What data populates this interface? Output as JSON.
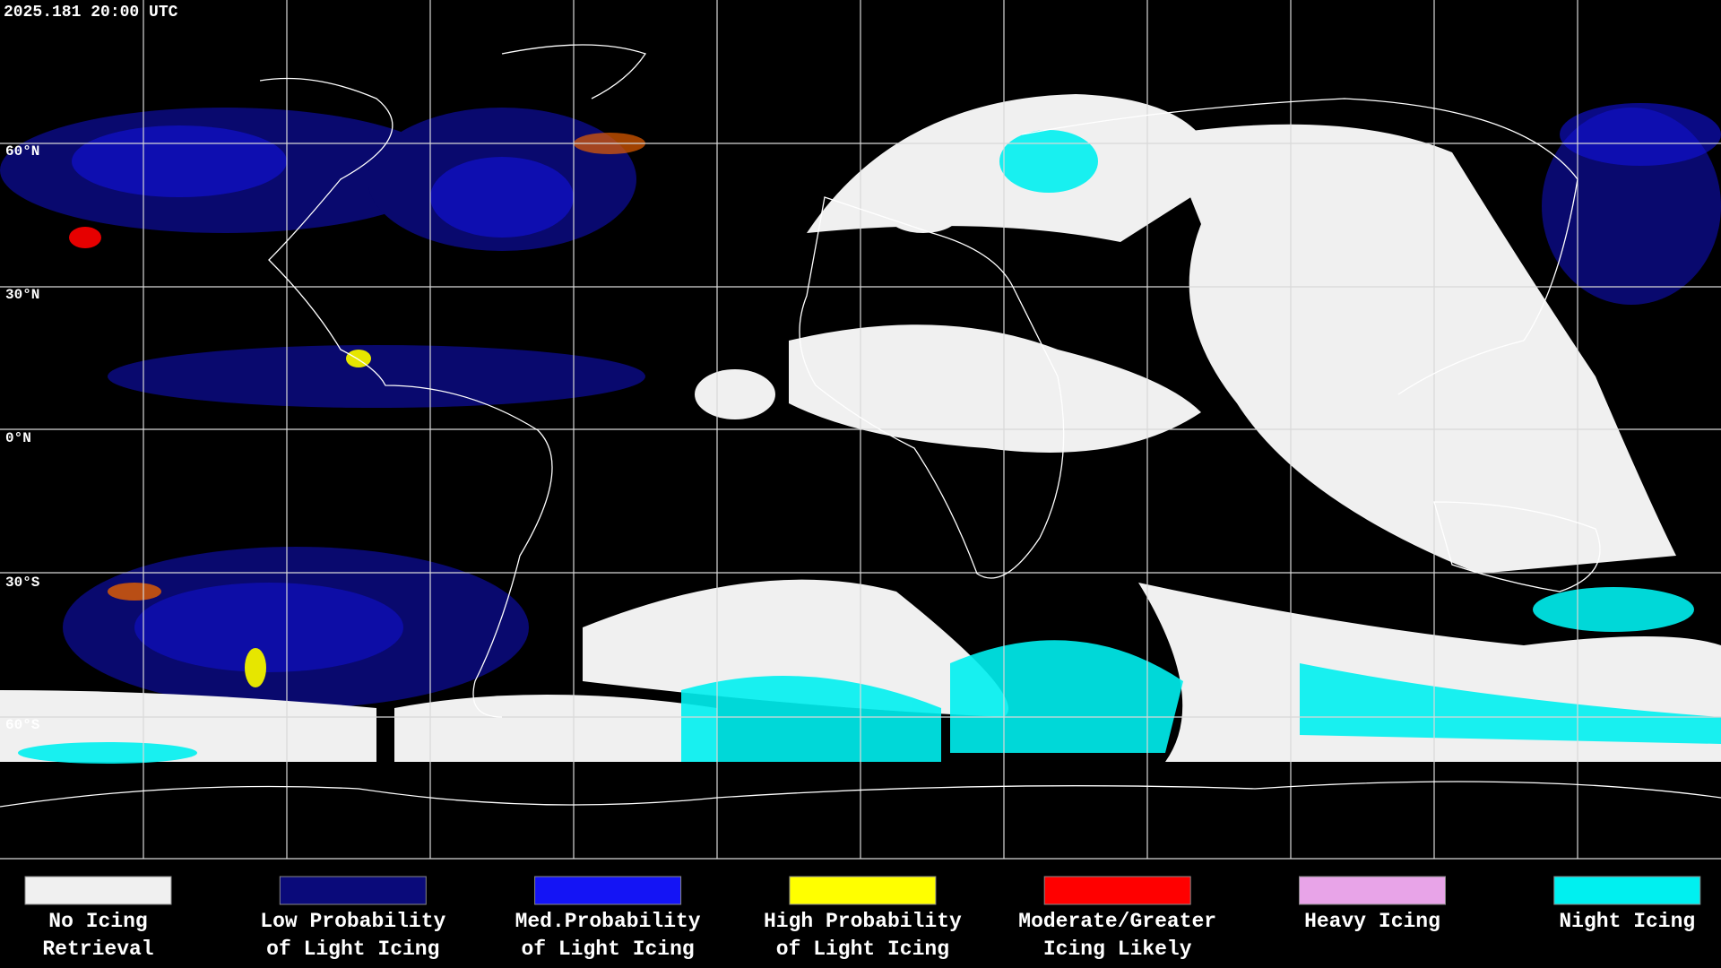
{
  "timestamp": "2025.181 20:00 UTC",
  "latitude_labels": [
    "60°N",
    "30°N",
    "0°N",
    "30°S",
    "60°S"
  ],
  "legend": [
    {
      "label_lines": [
        "No Icing",
        "Retrieval"
      ],
      "color": "#f0f0f0"
    },
    {
      "label_lines": [
        "Low Probability",
        "of Light Icing"
      ],
      "color": "#0a0a7a"
    },
    {
      "label_lines": [
        "Med.Probability",
        "of Light Icing"
      ],
      "color": "#1414f5"
    },
    {
      "label_lines": [
        "High Probability",
        "of Light Icing"
      ],
      "color": "#ffff00"
    },
    {
      "label_lines": [
        "Moderate/Greater",
        "Icing Likely"
      ],
      "color": "#ff0000"
    },
    {
      "label_lines": [
        "Heavy Icing"
      ],
      "color": "#e8a4e8"
    },
    {
      "label_lines": [
        "Night Icing"
      ],
      "color": "#00f0f0"
    }
  ]
}
